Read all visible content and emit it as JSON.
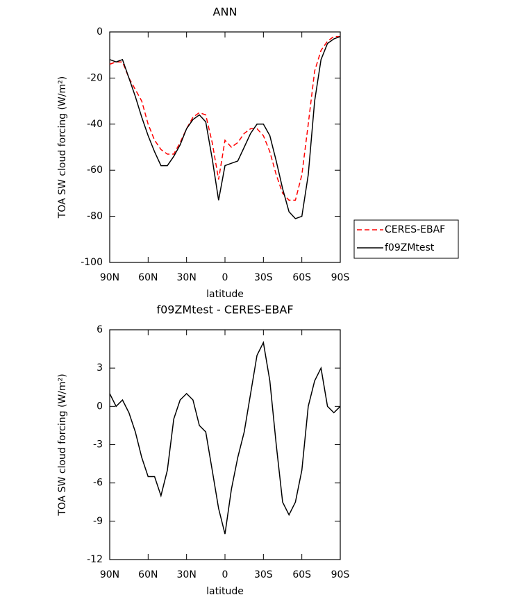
{
  "chart_data": [
    {
      "type": "line",
      "title": "ANN",
      "xlabel": "latitude",
      "ylabel": "TOA SW cloud forcing (W/m²)",
      "x": [
        90,
        85,
        80,
        75,
        70,
        65,
        60,
        55,
        50,
        45,
        40,
        35,
        30,
        25,
        20,
        15,
        10,
        5,
        0,
        -5,
        -10,
        -15,
        -20,
        -25,
        -30,
        -35,
        -40,
        -45,
        -50,
        -55,
        -60,
        -65,
        -70,
        -75,
        -80,
        -85,
        -90
      ],
      "series": [
        {
          "name": "CERES-EBAF",
          "color": "#ff0000",
          "style": "dashed",
          "values": [
            -14,
            -13,
            -13,
            -20,
            -25,
            -30,
            -40,
            -47,
            -51,
            -53,
            -53,
            -48,
            -42,
            -37,
            -35,
            -36,
            -48,
            -64,
            -47,
            -50,
            -48,
            -44,
            -42,
            -42,
            -45,
            -52,
            -62,
            -70,
            -73,
            -73,
            -62,
            -40,
            -17,
            -8,
            -4,
            -2,
            -2
          ]
        },
        {
          "name": "f09ZMtest",
          "color": "#000000",
          "style": "solid",
          "values": [
            -12,
            -13,
            -12,
            -20,
            -28,
            -37,
            -45,
            -52,
            -58,
            -58,
            -54,
            -49,
            -42,
            -38,
            -36,
            -39,
            -55,
            -73,
            -58,
            -57,
            -56,
            -50,
            -44,
            -40,
            -40,
            -45,
            -56,
            -68,
            -78,
            -81,
            -80,
            -62,
            -30,
            -12,
            -5,
            -3,
            -2
          ]
        }
      ],
      "xlim": [
        90,
        -90
      ],
      "xticks": [
        {
          "value": 90,
          "label": "90N"
        },
        {
          "value": 60,
          "label": "60N"
        },
        {
          "value": 30,
          "label": "30N"
        },
        0,
        {
          "value": -30,
          "label": "30S"
        },
        {
          "value": -60,
          "label": "60S"
        },
        {
          "value": -90,
          "label": "90S"
        }
      ],
      "ylim": [
        -100,
        0
      ],
      "yticks": [
        0,
        -20,
        -40,
        -60,
        -80,
        -100
      ],
      "legend": "right"
    },
    {
      "type": "line",
      "title": "f09ZMtest - CERES-EBAF",
      "xlabel": "latitude",
      "ylabel": "TOA SW cloud forcing (W/m²)",
      "x": [
        90,
        85,
        80,
        75,
        70,
        65,
        60,
        55,
        50,
        45,
        40,
        35,
        30,
        25,
        20,
        15,
        10,
        5,
        0,
        -5,
        -10,
        -15,
        -20,
        -25,
        -30,
        -35,
        -40,
        -45,
        -50,
        -55,
        -60,
        -65,
        -70,
        -75,
        -80,
        -85,
        -90
      ],
      "values": [
        1,
        0,
        0.5,
        -0.5,
        -2,
        -4,
        -5.5,
        -5.5,
        -7,
        -5,
        -1,
        0.5,
        1,
        0.5,
        -1.5,
        -2,
        -5,
        -8,
        -10,
        -6.5,
        -4,
        -2,
        1,
        4,
        5,
        2,
        -3,
        -7.5,
        -8.5,
        -7.5,
        -5,
        0,
        2,
        3,
        0,
        -0.5,
        0
      ],
      "color": "#000000",
      "xlim": [
        90,
        -90
      ],
      "xticks": [
        {
          "value": 90,
          "label": "90N"
        },
        {
          "value": 60,
          "label": "60N"
        },
        {
          "value": 30,
          "label": "30N"
        },
        0,
        {
          "value": -30,
          "label": "30S"
        },
        {
          "value": -60,
          "label": "60S"
        },
        {
          "value": -90,
          "label": "90S"
        }
      ],
      "ylim": [
        -12,
        6
      ],
      "yticks": [
        6,
        3,
        0,
        -3,
        -6,
        -9,
        -12
      ]
    }
  ]
}
